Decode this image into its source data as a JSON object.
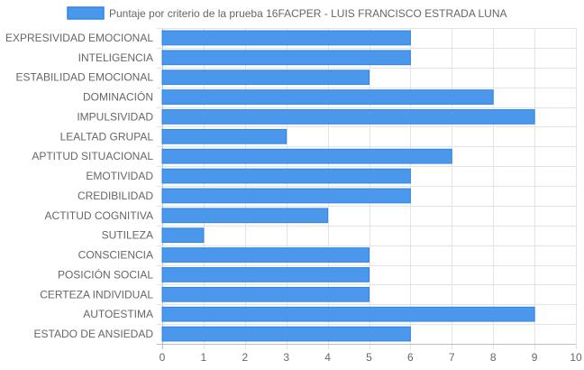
{
  "chart_data": {
    "type": "bar",
    "orientation": "horizontal",
    "categories": [
      "EXPRESIVIDAD EMOCIONAL",
      "INTELIGENCIA",
      "ESTABILIDAD EMOCIONAL",
      "DOMINACIÓN",
      "IMPULSIVIDAD",
      "LEALTAD GRUPAL",
      "APTITUD SITUACIONAL",
      "EMOTIVIDAD",
      "CREDIBILIDAD",
      "ACTITUD COGNITIVA",
      "SUTILEZA",
      "CONSCIENCIA",
      "POSICIÓN SOCIAL",
      "CERTEZA INDIVIDUAL",
      "AUTOESTIMA",
      "ESTADO DE ANSIEDAD"
    ],
    "series": [
      {
        "name": "Puntaje por criterio de la prueba 16FACPER - LUIS FRANCISCO ESTRADA LUNA",
        "values": [
          6,
          6,
          5,
          8,
          9,
          3,
          7,
          6,
          6,
          4,
          1,
          5,
          5,
          5,
          9,
          6
        ],
        "color": "#4a97eb",
        "border_color": "#2f86e6"
      }
    ],
    "xlim": [
      0,
      10
    ],
    "x_ticks": [
      "0",
      "1",
      "2",
      "3",
      "4",
      "5",
      "6",
      "7",
      "8",
      "9",
      "10"
    ],
    "grid": true,
    "legend_position": "top"
  }
}
